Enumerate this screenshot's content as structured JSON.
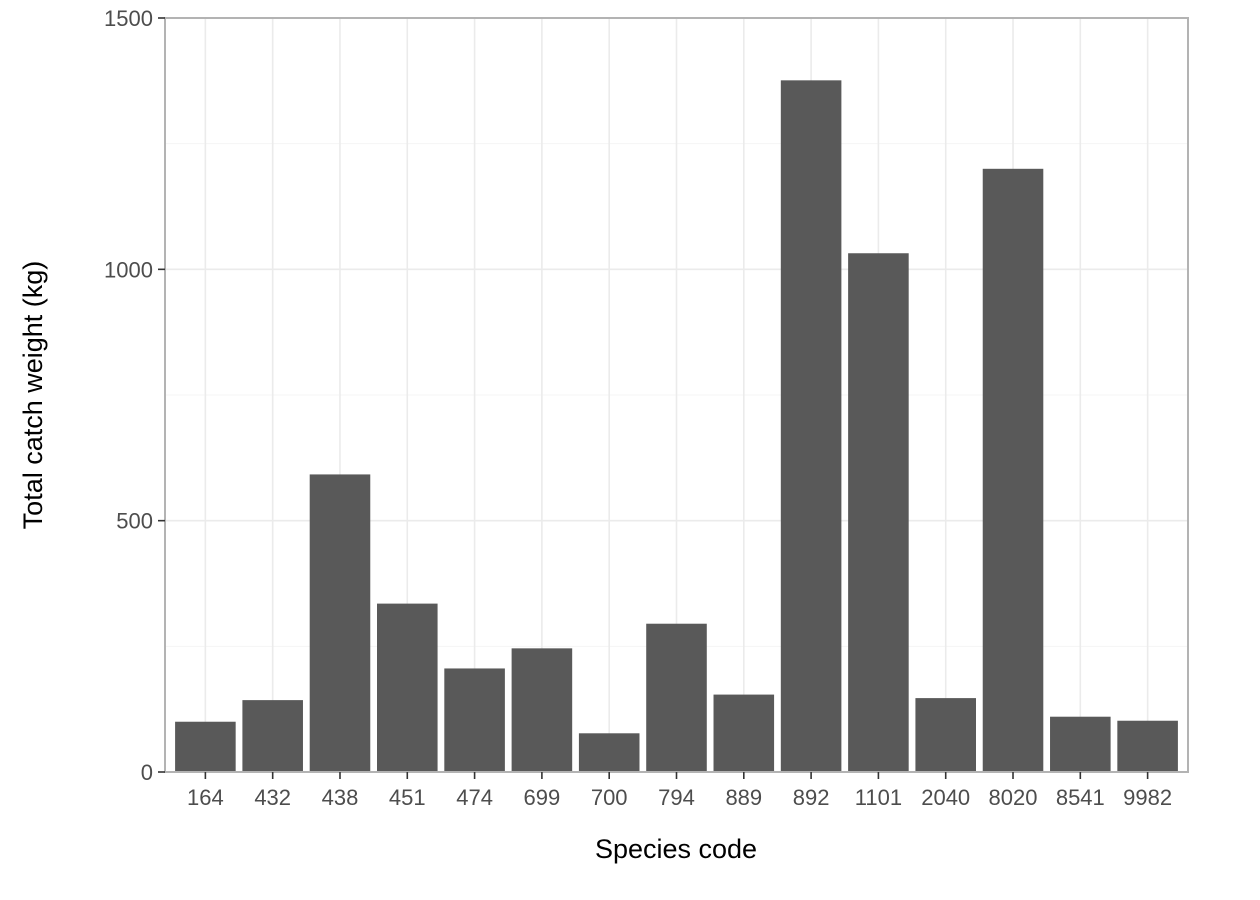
{
  "colors": {
    "bar": "#595959",
    "grid_major": "#ebebeb",
    "grid_minor": "#f5f5f5",
    "panel_border": "#b3b3b3",
    "tick": "#333333",
    "tick_label": "#4d4d4d",
    "axis_title": "#000000",
    "background": "#ffffff"
  },
  "chart_data": {
    "type": "bar",
    "title": "",
    "xlabel": "Species code",
    "ylabel": "Total catch weight (kg)",
    "categories": [
      "164",
      "432",
      "438",
      "451",
      "474",
      "699",
      "700",
      "794",
      "889",
      "892",
      "1101",
      "2040",
      "8020",
      "8541",
      "9982"
    ],
    "values": [
      100,
      143,
      592,
      335,
      206,
      246,
      77,
      295,
      154,
      1376,
      1032,
      147,
      1200,
      110,
      102
    ],
    "ylim": [
      0,
      1500
    ],
    "yticks": [
      0,
      500,
      1000,
      1500
    ],
    "ytick_labels": [
      "0",
      "500",
      "1000",
      "1500"
    ],
    "grid": true,
    "legend": "none"
  }
}
